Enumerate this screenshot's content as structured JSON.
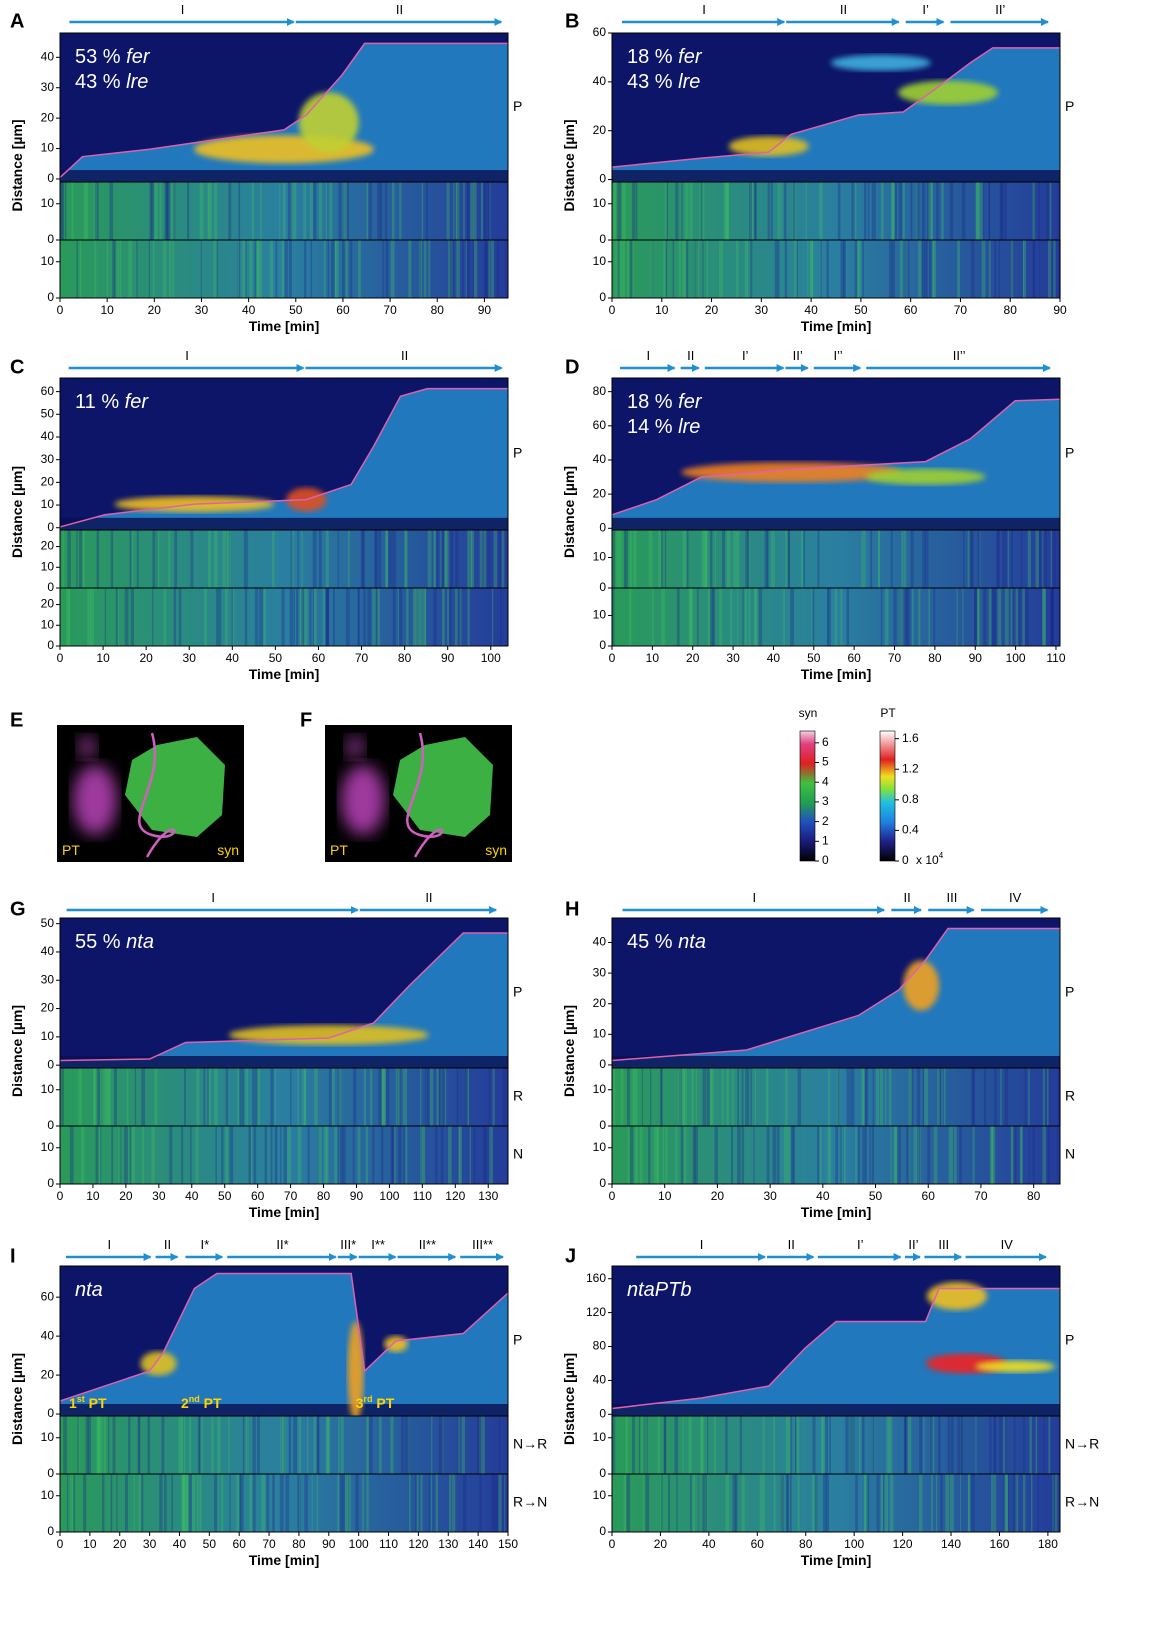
{
  "panels": [
    {
      "letter": "A",
      "phases": [
        {
          "label": "I",
          "start": 2,
          "end": 50
        },
        {
          "label": "II",
          "start": 50,
          "end": 94
        }
      ],
      "annotation": [
        {
          "text": "53 %",
          "gene": "fer"
        },
        {
          "text": "43 %",
          "gene": "lre"
        }
      ],
      "xlim": [
        0,
        95
      ],
      "xticks": [
        0,
        10,
        20,
        30,
        40,
        50,
        60,
        70,
        80,
        90
      ],
      "ylim": [
        -1,
        48
      ],
      "yticks": [
        0,
        10,
        20,
        30,
        40
      ],
      "strip_ylim": [
        0,
        16
      ],
      "strip_yticks": [
        0,
        10
      ],
      "side_labels": [
        "P"
      ],
      "ylabel": "Distance [µm]",
      "xlabel": "Time [min]"
    },
    {
      "letter": "B",
      "phases": [
        {
          "label": "I",
          "start": 2,
          "end": 35
        },
        {
          "label": "II",
          "start": 35,
          "end": 58
        },
        {
          "label": "I’",
          "start": 59,
          "end": 67
        },
        {
          "label": "II’",
          "start": 68,
          "end": 88
        }
      ],
      "annotation": [
        {
          "text": "18 %",
          "gene": "fer"
        },
        {
          "text": "43 %",
          "gene": "lre"
        }
      ],
      "xlim": [
        0,
        90
      ],
      "xticks": [
        0,
        10,
        20,
        30,
        40,
        50,
        60,
        70,
        80,
        90
      ],
      "ylim": [
        -1,
        60
      ],
      "yticks": [
        0,
        20,
        40,
        60
      ],
      "strip_ylim": [
        0,
        16
      ],
      "strip_yticks": [
        0,
        10
      ],
      "side_labels": [
        "P"
      ],
      "ylabel": "Distance [µm]",
      "xlabel": "Time [min]"
    },
    {
      "letter": "C",
      "phases": [
        {
          "label": "I",
          "start": 2,
          "end": 57
        },
        {
          "label": "II",
          "start": 57,
          "end": 103
        }
      ],
      "annotation": [
        {
          "text": "11 %",
          "gene": "fer"
        }
      ],
      "xlim": [
        0,
        104
      ],
      "xticks": [
        0,
        10,
        20,
        30,
        40,
        50,
        60,
        70,
        80,
        90,
        100
      ],
      "ylim": [
        -1,
        66
      ],
      "yticks": [
        0,
        10,
        20,
        30,
        40,
        50,
        60
      ],
      "strip_ylim": [
        0,
        28
      ],
      "strip_yticks": [
        0,
        10,
        20
      ],
      "side_labels": [
        "P"
      ],
      "ylabel": "Distance [µm]",
      "xlabel": "Time [min]"
    },
    {
      "letter": "D",
      "phases": [
        {
          "label": "I",
          "start": 2,
          "end": 16
        },
        {
          "label": "II",
          "start": 17,
          "end": 22
        },
        {
          "label": "I’",
          "start": 23,
          "end": 43
        },
        {
          "label": "II’",
          "start": 43,
          "end": 49
        },
        {
          "label": "I’’",
          "start": 50,
          "end": 62
        },
        {
          "label": "II’’",
          "start": 63,
          "end": 109
        }
      ],
      "annotation": [
        {
          "text": "18 %",
          "gene": "fer"
        },
        {
          "text": "14 %",
          "gene": "lre"
        }
      ],
      "xlim": [
        0,
        111
      ],
      "xticks": [
        0,
        10,
        20,
        30,
        40,
        50,
        60,
        70,
        80,
        90,
        100,
        110
      ],
      "ylim": [
        -1,
        88
      ],
      "yticks": [
        0,
        20,
        40,
        60,
        80
      ],
      "strip_ylim": [
        0,
        19
      ],
      "strip_yticks": [
        0,
        10
      ],
      "side_labels": [
        "P"
      ],
      "ylabel": "Distance [µm]",
      "xlabel": "Time [min]"
    },
    {
      "letter": "G",
      "phases": [
        {
          "label": "I",
          "start": 2,
          "end": 91
        },
        {
          "label": "II",
          "start": 91,
          "end": 133
        }
      ],
      "annotation": [
        {
          "text": "55 %",
          "gene": "nta"
        }
      ],
      "xlim": [
        0,
        136
      ],
      "xticks": [
        0,
        10,
        20,
        30,
        40,
        50,
        60,
        70,
        80,
        90,
        100,
        110,
        120,
        130
      ],
      "ylim": [
        -1,
        52
      ],
      "yticks": [
        0,
        10,
        20,
        30,
        40,
        50
      ],
      "strip_ylim": [
        0,
        16
      ],
      "strip_yticks": [
        0,
        10
      ],
      "side_labels": [
        "P",
        "R",
        "N"
      ],
      "ylabel": "Distance [µm]",
      "xlabel": "Time [min]"
    },
    {
      "letter": "H",
      "phases": [
        {
          "label": "I",
          "start": 2,
          "end": 52
        },
        {
          "label": "II",
          "start": 53,
          "end": 59
        },
        {
          "label": "III",
          "start": 60,
          "end": 69
        },
        {
          "label": "IV",
          "start": 70,
          "end": 83
        }
      ],
      "annotation": [
        {
          "text": "45 %",
          "gene": "nta"
        }
      ],
      "xlim": [
        0,
        85
      ],
      "xticks": [
        0,
        10,
        20,
        30,
        40,
        50,
        60,
        70,
        80
      ],
      "ylim": [
        -1,
        48
      ],
      "yticks": [
        0,
        10,
        20,
        30,
        40
      ],
      "strip_ylim": [
        0,
        16
      ],
      "strip_yticks": [
        0,
        10
      ],
      "side_labels": [
        "P",
        "R",
        "N"
      ],
      "ylabel": "Distance [µm]",
      "xlabel": "Time [min]"
    },
    {
      "letter": "I",
      "phases": [
        {
          "label": "I",
          "start": 2,
          "end": 31
        },
        {
          "label": "II",
          "start": 32,
          "end": 40
        },
        {
          "label": "I*",
          "start": 42,
          "end": 55
        },
        {
          "label": "II*",
          "start": 56,
          "end": 93
        },
        {
          "label": "III*",
          "start": 93,
          "end": 100
        },
        {
          "label": "I**",
          "start": 100,
          "end": 113
        },
        {
          "label": "II**",
          "start": 113,
          "end": 133
        },
        {
          "label": "III**",
          "start": 134,
          "end": 149
        }
      ],
      "annotation": [
        {
          "text": "",
          "gene": "nta"
        }
      ],
      "pt_labels": [
        {
          "num": "1",
          "sup": "st",
          "text": "PT"
        },
        {
          "num": "2",
          "sup": "nd",
          "text": "PT"
        },
        {
          "num": "3",
          "sup": "rd",
          "text": "PT"
        }
      ],
      "xlim": [
        0,
        150
      ],
      "xticks": [
        0,
        10,
        20,
        30,
        40,
        50,
        60,
        70,
        80,
        90,
        100,
        110,
        120,
        130,
        140,
        150
      ],
      "ylim": [
        -1,
        76
      ],
      "yticks": [
        0,
        20,
        40,
        60
      ],
      "strip_ylim": [
        0,
        16
      ],
      "strip_yticks": [
        0,
        10
      ],
      "side_labels": [
        "P",
        "N→R",
        "R→N"
      ],
      "ylabel": "Distance [µm]",
      "xlabel": "Time [min]"
    },
    {
      "letter": "J",
      "phases": [
        {
          "label": "I",
          "start": 10,
          "end": 64
        },
        {
          "label": "II",
          "start": 64,
          "end": 84
        },
        {
          "label": "I’",
          "start": 85,
          "end": 120
        },
        {
          "label": "II’",
          "start": 121,
          "end": 128
        },
        {
          "label": "III",
          "start": 129,
          "end": 145
        },
        {
          "label": "IV",
          "start": 146,
          "end": 180
        }
      ],
      "annotation": [
        {
          "text": "",
          "gene": "ntaPTb"
        }
      ],
      "xlim": [
        0,
        185
      ],
      "xticks": [
        0,
        20,
        40,
        60,
        80,
        100,
        120,
        140,
        160,
        180
      ],
      "ylim": [
        -2,
        175
      ],
      "yticks": [
        0,
        40,
        80,
        120,
        160
      ],
      "strip_ylim": [
        0,
        16
      ],
      "strip_yticks": [
        0,
        10
      ],
      "side_labels": [
        "P",
        "N→R",
        "R→N"
      ],
      "ylabel": "Distance [µm]",
      "xlabel": "Time [min]"
    }
  ],
  "images": [
    {
      "letter": "E",
      "labels": [
        "PT",
        "syn"
      ]
    },
    {
      "letter": "F",
      "labels": [
        "PT",
        "syn"
      ]
    }
  ],
  "colorbars": [
    {
      "title": "syn",
      "lim": [
        0,
        6.6
      ],
      "ticks": [
        0,
        1,
        2,
        3,
        4,
        5,
        6
      ]
    },
    {
      "title": "PT",
      "lim": [
        0,
        1.7
      ],
      "ticks": [
        0,
        0.4,
        0.8,
        1.2,
        1.6
      ],
      "scale": "x 10",
      "scale_exp": "4"
    }
  ]
}
